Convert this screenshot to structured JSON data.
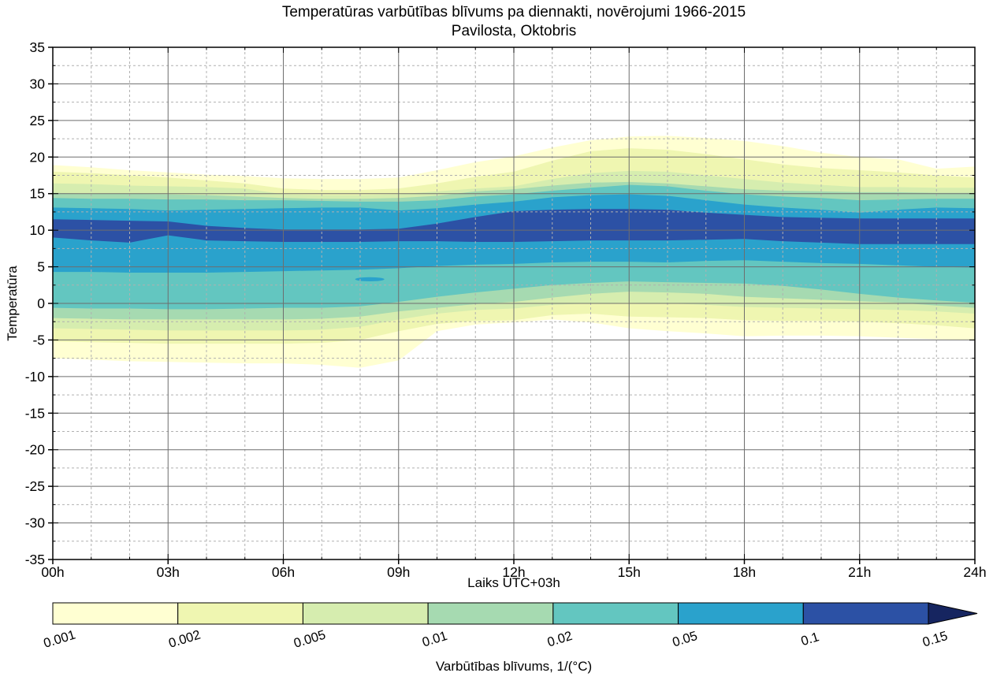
{
  "page": {
    "background": "#ffffff"
  },
  "chart_data": {
    "type": "heatmap",
    "variant": "filled-contour",
    "title": "Temperatūras varbūtības blīvums pa diennakti, novērojumi 1966-2015",
    "subtitle": "Pavilosta, Oktobris",
    "xlabel": "Laiks UTC+03h",
    "ylabel": "Temperatūra",
    "xlim": [
      0,
      24
    ],
    "ylim": [
      -35,
      35
    ],
    "x_major_ticks": [
      0,
      3,
      6,
      9,
      12,
      15,
      18,
      21,
      24
    ],
    "x_tick_labels": [
      "00h",
      "03h",
      "06h",
      "09h",
      "12h",
      "15h",
      "18h",
      "21h",
      "24h"
    ],
    "y_major_ticks": [
      35,
      30,
      25,
      20,
      15,
      10,
      5,
      0,
      -5,
      -10,
      -15,
      -20,
      -25,
      -30,
      -35
    ],
    "grid": {
      "minor_x_step_hours": 1,
      "minor_y_step_deg": 2.5,
      "major_color": "#6e6e6e",
      "minor_color": "#b0b0b0",
      "axis_color": "#000000"
    },
    "hours": [
      0,
      1,
      2,
      3,
      4,
      5,
      6,
      7,
      8,
      9,
      10,
      11,
      12,
      13,
      14,
      15,
      16,
      17,
      18,
      19,
      20,
      21,
      22,
      23,
      24
    ],
    "levels": [
      {
        "value": 0.001,
        "color": "#ffffd2",
        "upper": [
          18.9,
          18.6,
          18.2,
          17.9,
          17.6,
          17.4,
          17.1,
          17.0,
          17.0,
          17.2,
          18.2,
          19.3,
          20.1,
          21.3,
          22.3,
          22.8,
          22.9,
          22.6,
          22.2,
          21.5,
          20.6,
          20.0,
          19.7,
          18.4,
          18.7
        ],
        "lower": [
          -7.5,
          -7.7,
          -7.9,
          -8.0,
          -8.1,
          -8.2,
          -8.2,
          -8.4,
          -8.8,
          -7.8,
          -3.8,
          -2.9,
          -2.6,
          -2.2,
          -2.6,
          -3.4,
          -3.8,
          -4.1,
          -4.5,
          -4.4,
          -4.4,
          -4.5,
          -4.7,
          -4.9,
          -5.0
        ]
      },
      {
        "value": 0.002,
        "color": "#eff6b1",
        "upper": [
          18.0,
          17.8,
          17.5,
          17.2,
          16.8,
          16.4,
          15.7,
          15.5,
          15.5,
          15.7,
          16.4,
          17.3,
          18.0,
          19.5,
          20.8,
          21.2,
          21.0,
          20.4,
          19.7,
          19.0,
          18.5,
          18.2,
          17.9,
          17.5,
          17.2
        ],
        "lower": [
          -5.2,
          -5.3,
          -5.4,
          -5.5,
          -5.5,
          -5.5,
          -5.5,
          -5.4,
          -5.0,
          -3.8,
          -2.8,
          -2.4,
          -2.3,
          -1.6,
          -1.4,
          -1.8,
          -1.9,
          -2.0,
          -2.3,
          -2.4,
          -2.4,
          -2.5,
          -2.7,
          -3.0,
          -3.4
        ]
      },
      {
        "value": 0.005,
        "color": "#d6edaf",
        "upper": [
          16.4,
          16.3,
          16.1,
          16.0,
          15.9,
          15.7,
          14.9,
          14.8,
          14.8,
          14.9,
          15.3,
          15.7,
          16.0,
          17.0,
          17.8,
          18.1,
          18.0,
          17.5,
          17.0,
          16.5,
          16.2,
          15.9,
          15.9,
          15.8,
          15.8
        ],
        "lower": [
          -3.4,
          -3.5,
          -3.6,
          -3.7,
          -3.7,
          -3.7,
          -3.7,
          -3.6,
          -3.2,
          -2.2,
          -1.4,
          -0.9,
          -0.7,
          -0.2,
          0.0,
          0.1,
          0.0,
          -0.2,
          -0.5,
          -0.6,
          -0.7,
          -0.8,
          -0.9,
          -1.1,
          -1.4
        ]
      },
      {
        "value": 0.01,
        "color": "#a6dab1",
        "upper": [
          15.1,
          15.0,
          15.0,
          14.9,
          14.8,
          14.6,
          14.4,
          14.3,
          14.3,
          14.4,
          14.7,
          15.3,
          15.6,
          16.1,
          16.5,
          16.6,
          16.4,
          16.0,
          15.6,
          15.4,
          15.3,
          15.2,
          15.2,
          15.1,
          15.1
        ],
        "lower": [
          -2.0,
          -2.1,
          -2.2,
          -2.2,
          -2.2,
          -2.2,
          -2.2,
          -2.1,
          -1.8,
          -1.1,
          -0.6,
          -0.1,
          0.2,
          0.8,
          1.3,
          1.6,
          1.5,
          1.3,
          0.9,
          0.7,
          0.5,
          0.3,
          0.1,
          -0.3,
          -0.6
        ]
      },
      {
        "value": 0.02,
        "color": "#63c6c0",
        "upper": [
          14.4,
          14.3,
          14.3,
          14.2,
          14.2,
          14.1,
          14.1,
          14.0,
          13.9,
          13.9,
          14.1,
          14.6,
          14.9,
          15.4,
          15.8,
          16.2,
          16.0,
          15.4,
          14.9,
          14.6,
          14.4,
          14.1,
          14.2,
          14.3,
          14.3
        ],
        "lower": [
          -0.6,
          -0.7,
          -0.7,
          -0.8,
          -0.8,
          -0.7,
          -0.6,
          -0.6,
          -0.4,
          0.2,
          0.9,
          1.5,
          2.0,
          2.5,
          2.8,
          3.0,
          2.9,
          2.8,
          2.7,
          2.4,
          1.9,
          1.3,
          0.8,
          0.4,
          0.1
        ]
      },
      {
        "value": 0.05,
        "color": "#2aa2cc",
        "upper": [
          13.1,
          13.0,
          12.9,
          12.7,
          12.8,
          12.9,
          13.0,
          13.1,
          13.1,
          12.7,
          13.0,
          13.5,
          13.9,
          14.5,
          14.8,
          14.9,
          14.7,
          14.1,
          13.5,
          13.1,
          12.8,
          12.4,
          12.8,
          13.1,
          13.0
        ],
        "lower": [
          4.3,
          4.3,
          4.2,
          4.2,
          4.2,
          4.3,
          4.4,
          4.5,
          4.6,
          4.8,
          5.1,
          5.3,
          5.4,
          5.6,
          5.7,
          5.7,
          5.6,
          5.8,
          5.9,
          5.7,
          5.5,
          5.4,
          5.2,
          5.0,
          4.9
        ]
      },
      {
        "value": 0.1,
        "color": "#2c51a5",
        "upper": [
          11.5,
          11.4,
          11.3,
          11.2,
          10.6,
          10.3,
          10.1,
          10.1,
          10.1,
          10.2,
          10.9,
          11.8,
          12.6,
          12.8,
          12.9,
          12.9,
          12.8,
          12.4,
          12.1,
          11.8,
          11.7,
          11.6,
          11.6,
          11.6,
          11.6
        ],
        "lower": [
          9.0,
          8.6,
          8.3,
          9.3,
          8.6,
          8.5,
          8.4,
          8.4,
          8.4,
          8.5,
          8.5,
          8.4,
          8.4,
          8.5,
          8.6,
          8.6,
          8.6,
          8.7,
          8.8,
          8.5,
          8.3,
          8.1,
          8.1,
          8.1,
          8.1
        ]
      }
    ],
    "small_blob": {
      "hour_center": 8.25,
      "hour_halfwidth": 0.38,
      "temp_center": 3.3,
      "temp_halfheight": 0.28,
      "color": "#2aa2cc"
    },
    "colorbar": {
      "title": "Varbūtības blīvums, 1/(°C)",
      "labels": [
        "0.001",
        "0.002",
        "0.005",
        "0.01",
        "0.02",
        "0.05",
        "0.1",
        "0.15"
      ],
      "segment_colors": [
        "#ffffd2",
        "#eff6b1",
        "#d6edaf",
        "#a6dab1",
        "#63c6c0",
        "#2aa2cc",
        "#2c51a5"
      ],
      "arrow_color": "#162560",
      "label_rotation_deg": -17
    }
  }
}
